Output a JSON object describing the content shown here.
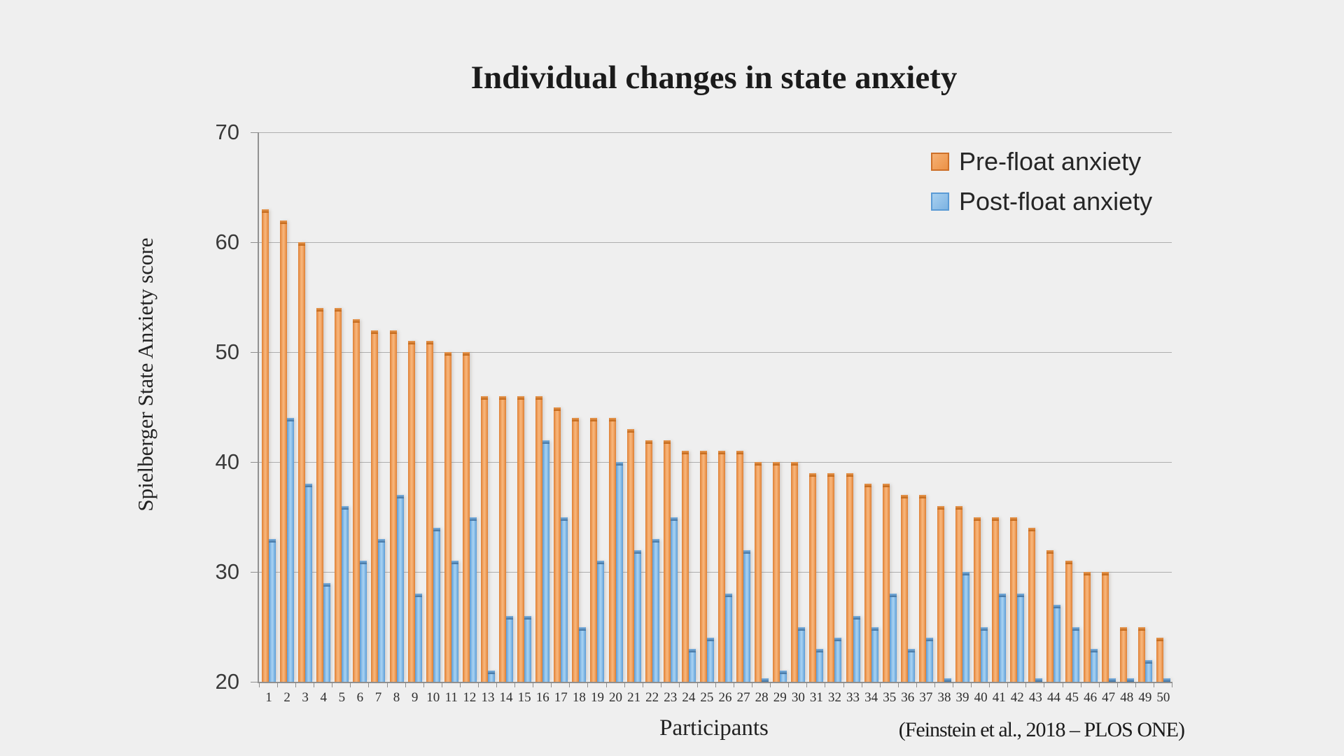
{
  "title": "Individual changes in state anxiety",
  "y_axis": {
    "label": "Spielberger State Anxiety score",
    "ticks": [
      70,
      60,
      50,
      40,
      30,
      20
    ]
  },
  "x_axis": {
    "label": "Participants"
  },
  "legend": {
    "items": [
      {
        "label": "Pre-float anxiety",
        "color": "#ED7D31"
      },
      {
        "label": "Post-float anxiety",
        "color": "#5B9BD5"
      }
    ],
    "position": "top-right-inside"
  },
  "citation": "(Feinstein et al., 2018 – PLOS ONE)",
  "colors": {
    "background": "#efefef",
    "gridline": "#aeaeae",
    "axis": "#929292",
    "pre_bar": "#ED8B3D",
    "post_bar": "#7DB3E2"
  },
  "chart_data": {
    "type": "bar",
    "title": "Individual changes in state anxiety",
    "xlabel": "Participants",
    "ylabel": "Spielberger State Anxiety score",
    "ylim": [
      20,
      70
    ],
    "grid": true,
    "legend_position": "top-right-inside",
    "categories": [
      1,
      2,
      3,
      4,
      5,
      6,
      7,
      8,
      9,
      10,
      11,
      12,
      13,
      14,
      15,
      16,
      17,
      18,
      19,
      20,
      21,
      22,
      23,
      24,
      25,
      26,
      27,
      28,
      29,
      30,
      31,
      32,
      33,
      34,
      35,
      36,
      37,
      38,
      39,
      40,
      41,
      42,
      43,
      44,
      45,
      46,
      47,
      48,
      49,
      50
    ],
    "series": [
      {
        "name": "Pre-float anxiety",
        "color": "#ED7D31",
        "values": [
          63,
          62,
          60,
          54,
          54,
          53,
          52,
          52,
          51,
          51,
          50,
          50,
          46,
          46,
          46,
          46,
          45,
          44,
          44,
          44,
          43,
          42,
          42,
          41,
          41,
          41,
          41,
          40,
          40,
          40,
          39,
          39,
          39,
          38,
          38,
          37,
          37,
          36,
          36,
          35,
          35,
          35,
          34,
          32,
          31,
          30,
          30,
          25,
          25,
          24
        ]
      },
      {
        "name": "Post-float anxiety",
        "color": "#5B9BD5",
        "values": [
          33,
          44,
          38,
          29,
          36,
          31,
          33,
          37,
          28,
          34,
          31,
          35,
          21,
          26,
          26,
          42,
          35,
          25,
          31,
          40,
          32,
          33,
          35,
          23,
          24,
          28,
          32,
          20,
          21,
          25,
          23,
          24,
          26,
          25,
          28,
          23,
          24,
          20,
          30,
          25,
          28,
          28,
          20,
          27,
          25,
          23,
          20,
          20,
          22,
          20
        ]
      }
    ]
  }
}
